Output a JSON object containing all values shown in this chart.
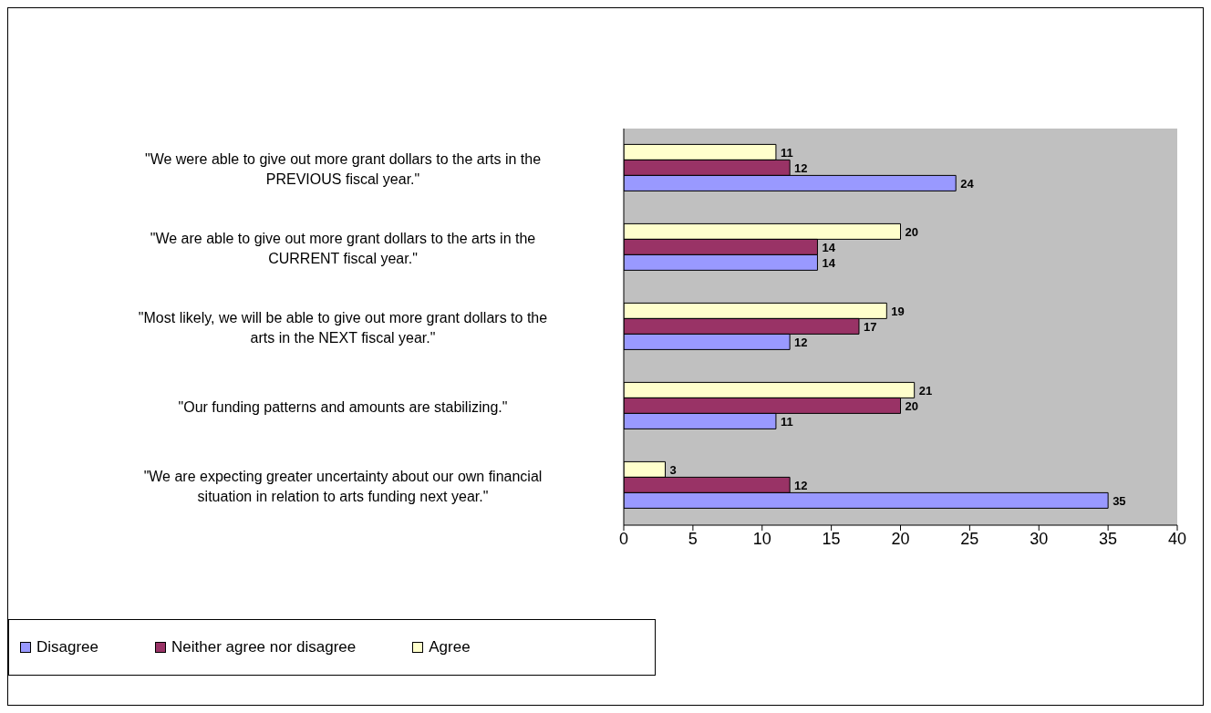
{
  "chart_data": {
    "type": "bar",
    "orientation": "horizontal",
    "categories": [
      "\"We were able to give out more grant dollars to the arts in the PREVIOUS fiscal year.\"",
      "\"We are able to give out more grant dollars to the arts in the CURRENT fiscal year.\"",
      "\"Most likely, we will be able to give out more grant dollars to the arts in the NEXT fiscal year.\"",
      "\"Our funding patterns and amounts are stabilizing.\"",
      "\"We are expecting greater uncertainty about our own financial situation in relation to arts funding next year.\""
    ],
    "series": [
      {
        "name": "Disagree",
        "color": "#9999ff",
        "values": [
          24,
          14,
          12,
          11,
          35
        ]
      },
      {
        "name": "Neither agree nor disagree",
        "color": "#993366",
        "values": [
          12,
          14,
          17,
          20,
          12
        ]
      },
      {
        "name": "Agree",
        "color": "#ffffcc",
        "values": [
          11,
          20,
          19,
          21,
          3
        ]
      }
    ],
    "xlim": [
      0,
      40
    ],
    "xticks": [
      0,
      5,
      10,
      15,
      20,
      25,
      30,
      35,
      40
    ],
    "data_labels": true,
    "legend": "bottom left"
  }
}
